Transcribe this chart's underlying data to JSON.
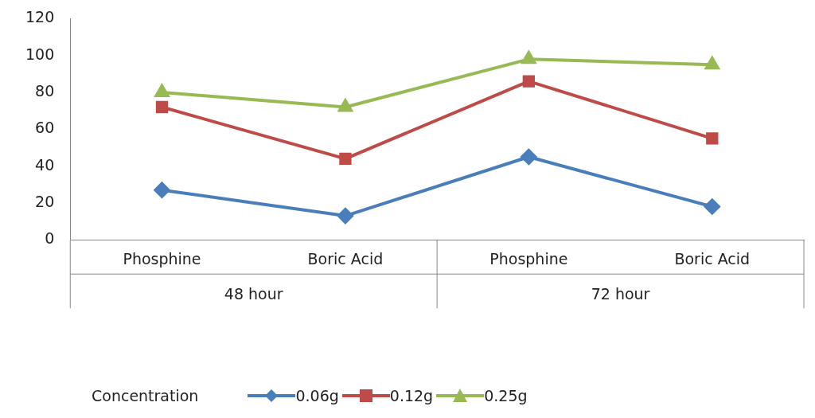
{
  "chart_data": {
    "type": "line",
    "categories": [
      "Phosphine",
      "Boric Acid",
      "Phosphine",
      "Boric Acid"
    ],
    "annotations": [
      "48 hour",
      "72 hour"
    ],
    "legend_title": "Concentration",
    "legend": "bottom",
    "grid": false,
    "ylim": [
      0,
      120
    ],
    "yticks": [
      0,
      20,
      40,
      60,
      80,
      100,
      120
    ],
    "series": [
      {
        "name": "0.06g",
        "color": "#4a7ebb",
        "marker": "diamond",
        "values": [
          27,
          13,
          45,
          18
        ]
      },
      {
        "name": "0.12g",
        "color": "#be4b48",
        "marker": "square",
        "values": [
          72,
          44,
          86,
          55
        ]
      },
      {
        "name": "0.25g",
        "color": "#98b954",
        "marker": "triangle",
        "values": [
          80,
          72,
          98,
          95
        ]
      }
    ]
  }
}
